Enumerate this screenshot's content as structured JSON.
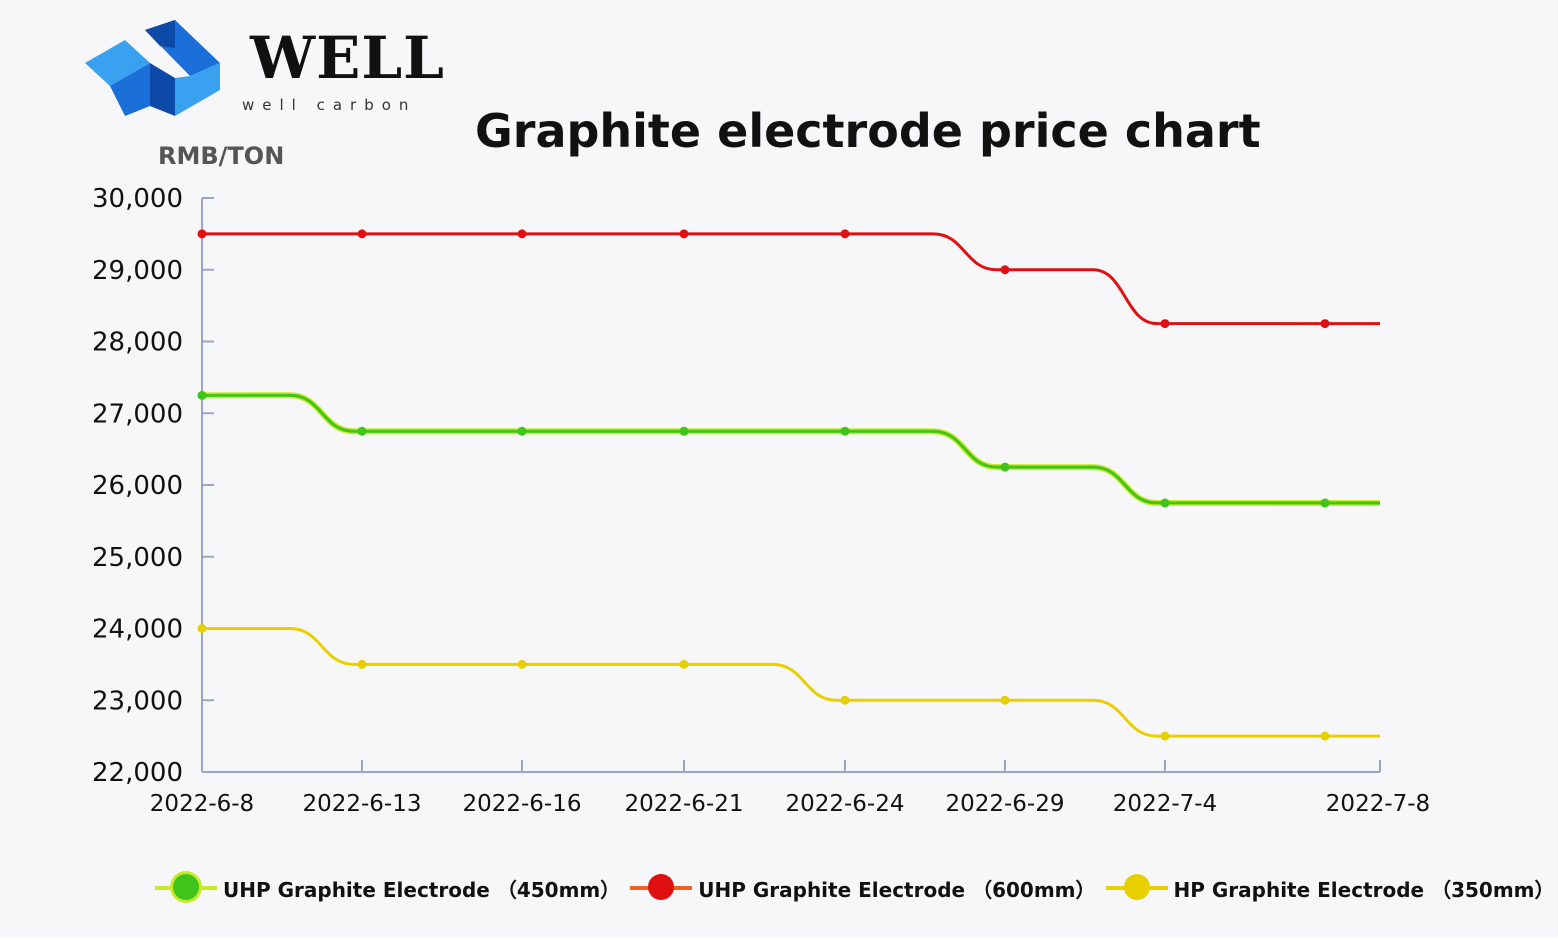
{
  "header": {
    "brand": "WELL",
    "tagline": "well carbon",
    "unit_label": "RMB/TON"
  },
  "colors": {
    "logo_primary": "#1a6fd8",
    "logo_dark": "#0d4aa8",
    "logo_light": "#3aa0f0",
    "axis": "#9aa3c8"
  },
  "chart_data": {
    "type": "line",
    "title": "Graphite electrode price chart",
    "xlabel": "",
    "ylabel": "RMB/TON",
    "categories": [
      "2022-6-8",
      "2022-6-13",
      "2022-6-16",
      "2022-6-21",
      "2022-6-24",
      "2022-6-29",
      "2022-7-4",
      "2022-7-8"
    ],
    "yticks": [
      "22,000",
      "23,000",
      "24,000",
      "25,000",
      "26,000",
      "27,000",
      "28,000",
      "29,000",
      "30,000"
    ],
    "ylim": [
      22000,
      30000
    ],
    "series": [
      {
        "name": "UHP Graphite Electrode （450mm）",
        "color": "#3ec41a",
        "glow": "#c7ea2a",
        "values": [
          27250,
          26750,
          26750,
          26750,
          26750,
          26250,
          25750,
          25750
        ]
      },
      {
        "name": "UHP Graphite Electrode （600mm）",
        "color": "#e01010",
        "glow": "#e01010",
        "values": [
          29500,
          29500,
          29500,
          29500,
          29500,
          29000,
          28250,
          28250
        ]
      },
      {
        "name": "HP Graphite Electrode （350mm）",
        "color": "#e8cf00",
        "glow": "#e8cf00",
        "values": [
          24000,
          23500,
          23500,
          23500,
          23000,
          23000,
          22500,
          22500
        ]
      }
    ]
  }
}
